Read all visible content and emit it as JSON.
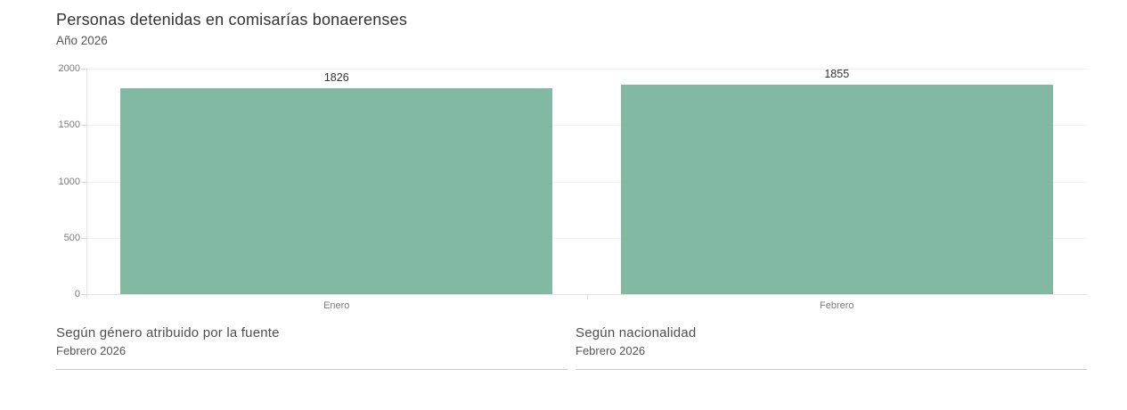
{
  "chart_data": {
    "type": "bar",
    "title": "Personas detenidas en comisarías bonaerenses",
    "subtitle": "Año 2026",
    "categories": [
      "Enero",
      "Febrero"
    ],
    "values": [
      1826,
      1855
    ],
    "value_labels": [
      "1826",
      "1855"
    ],
    "xlabel": "",
    "ylabel": "",
    "ylim": [
      0,
      2000
    ],
    "yticks": [
      0,
      500,
      1000,
      1500,
      2000
    ],
    "grid": true,
    "legend": false,
    "bar_color": "#82b9a2",
    "label_color": "#333333",
    "axis_text_color": "#7b7b7b"
  },
  "sections": [
    {
      "title": "Según género atribuido por la fuente",
      "subtitle": "Febrero 2026"
    },
    {
      "title": "Según nacionalidad",
      "subtitle": "Febrero 2026"
    }
  ]
}
